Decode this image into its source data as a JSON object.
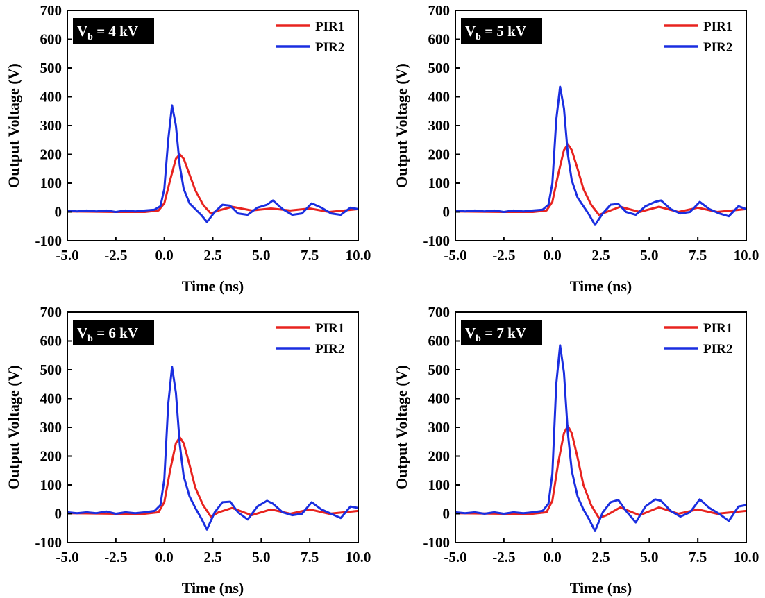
{
  "colors": {
    "PIR1": "#e8231f",
    "PIR2": "#1a2ee0",
    "axis": "#000000",
    "label_box": "#000000"
  },
  "chart_data": [
    {
      "type": "line",
      "annotation": {
        "main": "V",
        "sub": "b",
        "rest": " = 4 kV"
      },
      "xlabel": "Time (ns)",
      "ylabel": "Output Voltage (V)",
      "xlim": [
        -5,
        10
      ],
      "ylim": [
        -100,
        700
      ],
      "xticks": [
        -5,
        -2.5,
        0,
        2.5,
        5,
        7.5,
        10
      ],
      "xtick_labels": [
        "-5.0",
        "-2.5",
        "0.0",
        "2.5",
        "5.0",
        "7.5",
        "10.0"
      ],
      "yticks": [
        -100,
        0,
        100,
        200,
        300,
        400,
        500,
        600,
        700
      ],
      "ytick_labels": [
        "-100",
        "0",
        "100",
        "200",
        "300",
        "400",
        "500",
        "600",
        "700"
      ],
      "grid": false,
      "legend": "top-right",
      "series": [
        {
          "name": "PIR1",
          "color": "#e8231f",
          "x": [
            -5,
            -2.5,
            -1,
            -0.3,
            0,
            0.3,
            0.6,
            0.8,
            1.0,
            1.3,
            1.6,
            2.0,
            2.4,
            2.8,
            3.5,
            4.5,
            5.5,
            6.5,
            7.5,
            8.5,
            10
          ],
          "y": [
            2,
            0,
            0,
            5,
            30,
            110,
            185,
            200,
            185,
            130,
            75,
            25,
            -5,
            5,
            18,
            5,
            12,
            5,
            12,
            0,
            10
          ]
        },
        {
          "name": "PIR2",
          "color": "#1a2ee0",
          "x": [
            -5,
            -4.5,
            -4,
            -3.5,
            -3,
            -2.5,
            -2,
            -1.5,
            -1,
            -0.5,
            -0.2,
            0,
            0.2,
            0.4,
            0.6,
            0.8,
            1.0,
            1.3,
            1.6,
            1.9,
            2.2,
            2.6,
            3.0,
            3.4,
            3.8,
            4.3,
            4.8,
            5.3,
            5.6,
            6.1,
            6.6,
            7.1,
            7.6,
            8.1,
            8.6,
            9.1,
            9.6,
            10
          ],
          "y": [
            5,
            2,
            5,
            2,
            5,
            0,
            5,
            2,
            5,
            8,
            20,
            80,
            250,
            370,
            300,
            160,
            80,
            30,
            10,
            -10,
            -35,
            0,
            25,
            22,
            -5,
            -10,
            15,
            25,
            40,
            10,
            -10,
            -5,
            30,
            15,
            -5,
            -10,
            15,
            10
          ]
        }
      ]
    },
    {
      "type": "line",
      "annotation": {
        "main": "V",
        "sub": "b",
        "rest": " = 5 kV"
      },
      "xlabel": "Time (ns)",
      "ylabel": "Output Voltage (V)",
      "xlim": [
        -5,
        10
      ],
      "ylim": [
        -100,
        700
      ],
      "xticks": [
        -5,
        -2.5,
        0,
        2.5,
        5,
        7.5,
        10
      ],
      "xtick_labels": [
        "-5.0",
        "-2.5",
        "0.0",
        "2.5",
        "5.0",
        "7.5",
        "10.0"
      ],
      "yticks": [
        -100,
        0,
        100,
        200,
        300,
        400,
        500,
        600,
        700
      ],
      "ytick_labels": [
        "-100",
        "0",
        "100",
        "200",
        "300",
        "400",
        "500",
        "600",
        "700"
      ],
      "grid": false,
      "legend": "top-right",
      "series": [
        {
          "name": "PIR1",
          "color": "#e8231f",
          "x": [
            -5,
            -2.5,
            -1,
            -0.3,
            0,
            0.3,
            0.6,
            0.8,
            1.0,
            1.3,
            1.6,
            2.0,
            2.4,
            2.8,
            3.5,
            4.5,
            5.5,
            6.5,
            7.5,
            8.5,
            10
          ],
          "y": [
            2,
            0,
            0,
            5,
            35,
            130,
            215,
            235,
            215,
            150,
            80,
            25,
            -10,
            0,
            18,
            0,
            18,
            0,
            15,
            0,
            10
          ]
        },
        {
          "name": "PIR2",
          "color": "#1a2ee0",
          "x": [
            -5,
            -4.5,
            -4,
            -3.5,
            -3,
            -2.5,
            -2,
            -1.5,
            -1,
            -0.5,
            -0.2,
            0,
            0.2,
            0.4,
            0.6,
            0.8,
            1.0,
            1.3,
            1.6,
            1.9,
            2.2,
            2.6,
            3.0,
            3.4,
            3.8,
            4.3,
            4.8,
            5.3,
            5.6,
            6.1,
            6.6,
            7.1,
            7.6,
            8.1,
            8.6,
            9.1,
            9.6,
            10
          ],
          "y": [
            5,
            2,
            5,
            2,
            5,
            0,
            5,
            2,
            5,
            8,
            25,
            100,
            320,
            435,
            360,
            200,
            110,
            50,
            20,
            -10,
            -45,
            -5,
            25,
            28,
            0,
            -10,
            20,
            35,
            40,
            10,
            -5,
            0,
            35,
            10,
            -5,
            -15,
            20,
            10
          ]
        }
      ]
    },
    {
      "type": "line",
      "annotation": {
        "main": "V",
        "sub": "b",
        "rest": " = 6 kV"
      },
      "xlabel": "Time (ns)",
      "ylabel": "Output Voltage (V)",
      "xlim": [
        -5,
        10
      ],
      "ylim": [
        -100,
        700
      ],
      "xticks": [
        -5,
        -2.5,
        0,
        2.5,
        5,
        7.5,
        10
      ],
      "xtick_labels": [
        "-5.0",
        "-2.5",
        "0.0",
        "2.5",
        "5.0",
        "7.5",
        "10.0"
      ],
      "yticks": [
        -100,
        0,
        100,
        200,
        300,
        400,
        500,
        600,
        700
      ],
      "ytick_labels": [
        "-100",
        "0",
        "100",
        "200",
        "300",
        "400",
        "500",
        "600",
        "700"
      ],
      "grid": false,
      "legend": "top-right",
      "series": [
        {
          "name": "PIR1",
          "color": "#e8231f",
          "x": [
            -5,
            -2.5,
            -1,
            -0.3,
            0,
            0.3,
            0.6,
            0.8,
            1.0,
            1.3,
            1.6,
            2.0,
            2.4,
            2.8,
            3.5,
            4.5,
            5.5,
            6.5,
            7.5,
            8.5,
            10
          ],
          "y": [
            2,
            0,
            0,
            5,
            40,
            150,
            245,
            265,
            245,
            170,
            90,
            30,
            -10,
            5,
            20,
            -5,
            15,
            0,
            15,
            0,
            10
          ]
        },
        {
          "name": "PIR2",
          "color": "#1a2ee0",
          "x": [
            -5,
            -4.5,
            -4,
            -3.5,
            -3,
            -2.5,
            -2,
            -1.5,
            -1,
            -0.5,
            -0.2,
            0,
            0.2,
            0.4,
            0.6,
            0.8,
            1.0,
            1.3,
            1.6,
            1.9,
            2.2,
            2.6,
            3.0,
            3.4,
            3.8,
            4.3,
            4.8,
            5.3,
            5.6,
            6.1,
            6.6,
            7.1,
            7.6,
            8.1,
            8.6,
            9.1,
            9.6,
            10
          ],
          "y": [
            5,
            2,
            5,
            2,
            8,
            0,
            5,
            2,
            5,
            10,
            30,
            120,
            380,
            510,
            420,
            240,
            130,
            60,
            20,
            -15,
            -55,
            5,
            40,
            42,
            5,
            -20,
            25,
            45,
            35,
            5,
            -5,
            0,
            40,
            15,
            0,
            -15,
            25,
            20
          ]
        }
      ]
    },
    {
      "type": "line",
      "annotation": {
        "main": "V",
        "sub": "b",
        "rest": " = 7 kV"
      },
      "xlabel": "Time (ns)",
      "ylabel": "Output Voltage (V)",
      "xlim": [
        -5,
        10
      ],
      "ylim": [
        -100,
        700
      ],
      "xticks": [
        -5,
        -2.5,
        0,
        2.5,
        5,
        7.5,
        10
      ],
      "xtick_labels": [
        "-5.0",
        "-2.5",
        "0.0",
        "2.5",
        "5.0",
        "7.5",
        "10.0"
      ],
      "yticks": [
        -100,
        0,
        100,
        200,
        300,
        400,
        500,
        600,
        700
      ],
      "ytick_labels": [
        "-100",
        "0",
        "100",
        "200",
        "300",
        "400",
        "500",
        "600",
        "700"
      ],
      "grid": false,
      "legend": "top-right",
      "series": [
        {
          "name": "PIR1",
          "color": "#e8231f",
          "x": [
            -5,
            -2.5,
            -1,
            -0.3,
            0,
            0.3,
            0.6,
            0.8,
            1.0,
            1.3,
            1.6,
            2.0,
            2.4,
            2.8,
            3.5,
            4.5,
            5.5,
            6.5,
            7.5,
            8.5,
            10
          ],
          "y": [
            2,
            0,
            0,
            5,
            45,
            175,
            280,
            305,
            280,
            195,
            100,
            30,
            -15,
            -5,
            22,
            -5,
            22,
            0,
            15,
            0,
            10
          ]
        },
        {
          "name": "PIR2",
          "color": "#1a2ee0",
          "x": [
            -5,
            -4.5,
            -4,
            -3.5,
            -3,
            -2.5,
            -2,
            -1.5,
            -1,
            -0.5,
            -0.2,
            0,
            0.2,
            0.4,
            0.6,
            0.8,
            1.0,
            1.3,
            1.6,
            1.9,
            2.2,
            2.6,
            3.0,
            3.4,
            3.8,
            4.3,
            4.8,
            5.3,
            5.6,
            6.1,
            6.6,
            7.1,
            7.6,
            8.1,
            8.6,
            9.1,
            9.6,
            10
          ],
          "y": [
            5,
            2,
            5,
            0,
            5,
            0,
            5,
            2,
            5,
            10,
            35,
            140,
            450,
            585,
            490,
            280,
            150,
            60,
            15,
            -20,
            -60,
            5,
            40,
            48,
            10,
            -30,
            25,
            50,
            45,
            10,
            -10,
            5,
            50,
            20,
            0,
            -25,
            25,
            30
          ]
        }
      ]
    }
  ]
}
